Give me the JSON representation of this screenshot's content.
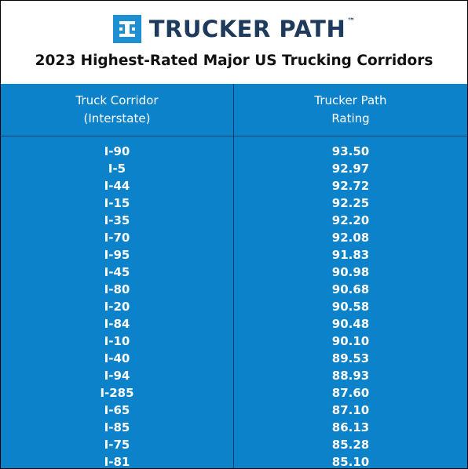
{
  "brand": {
    "name": "TRUCKER PATH",
    "trademark": "™",
    "logo_color": "#1d8fd3",
    "text_color": "#1e3a5c"
  },
  "title": "2023 Highest-Rated Major US Trucking Corridors",
  "table": {
    "background": "#0b82c9",
    "headers": {
      "corridor": [
        "Truck Corridor",
        "(Interstate)"
      ],
      "rating": [
        "Trucker Path",
        "Rating"
      ]
    },
    "rows": [
      {
        "corridor": "I-90",
        "rating": "93.50"
      },
      {
        "corridor": "I-5",
        "rating": "92.97"
      },
      {
        "corridor": "I-44",
        "rating": "92.72"
      },
      {
        "corridor": "I-15",
        "rating": "92.25"
      },
      {
        "corridor": "I-35",
        "rating": "92.20"
      },
      {
        "corridor": "I-70",
        "rating": "92.08"
      },
      {
        "corridor": "I-95",
        "rating": "91.83"
      },
      {
        "corridor": "I-45",
        "rating": "90.98"
      },
      {
        "corridor": "I-80",
        "rating": "90.68"
      },
      {
        "corridor": "I-20",
        "rating": "90.58"
      },
      {
        "corridor": "I-84",
        "rating": "90.48"
      },
      {
        "corridor": "I-10",
        "rating": "90.10"
      },
      {
        "corridor": "I-40",
        "rating": "89.53"
      },
      {
        "corridor": "I-94",
        "rating": "88.93"
      },
      {
        "corridor": "I-285",
        "rating": "87.60"
      },
      {
        "corridor": "I-65",
        "rating": "87.10"
      },
      {
        "corridor": "I-85",
        "rating": "86.13"
      },
      {
        "corridor": "I-75",
        "rating": "85.28"
      },
      {
        "corridor": "I-81",
        "rating": "85.10"
      }
    ]
  }
}
